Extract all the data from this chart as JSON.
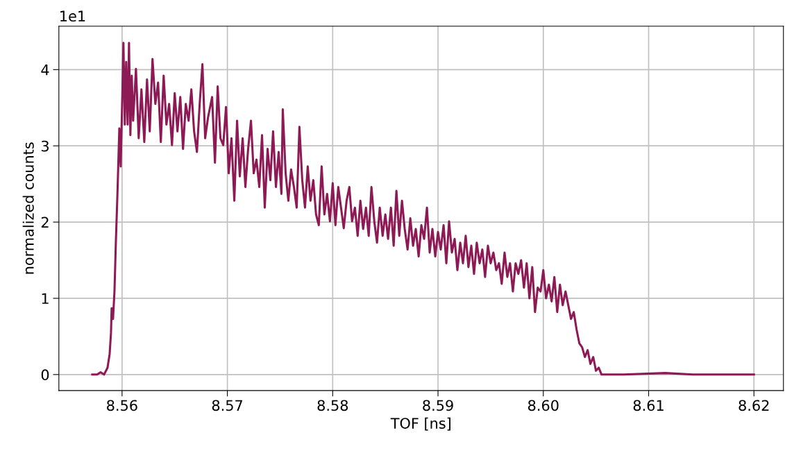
{
  "chart_data": {
    "type": "line",
    "xlabel": "TOF [ns]",
    "ylabel": "normalized counts",
    "annotations": [
      "1e1"
    ],
    "x": [
      8.55717,
      8.55763,
      8.55796,
      8.55829,
      8.55862,
      8.55882,
      8.55895,
      8.55901,
      8.55914,
      8.55928,
      8.55941,
      8.55954,
      8.55961,
      8.55974,
      8.55987,
      8.56,
      8.56013,
      8.56026,
      8.56039,
      8.56053,
      8.56066,
      8.56079,
      8.56092,
      8.56105,
      8.56132,
      8.56158,
      8.56184,
      8.56211,
      8.56237,
      8.56263,
      8.56289,
      8.56316,
      8.56342,
      8.56368,
      8.56395,
      8.56421,
      8.56447,
      8.56474,
      8.565,
      8.56526,
      8.56553,
      8.56579,
      8.56605,
      8.56632,
      8.56658,
      8.56684,
      8.56711,
      8.56737,
      8.56763,
      8.56789,
      8.56816,
      8.56855,
      8.56882,
      8.56908,
      8.56934,
      8.56961,
      8.56987,
      8.57013,
      8.57039,
      8.57066,
      8.57092,
      8.57118,
      8.57145,
      8.57171,
      8.57197,
      8.57224,
      8.5725,
      8.57276,
      8.57303,
      8.57329,
      8.57355,
      8.57382,
      8.57408,
      8.57434,
      8.57461,
      8.57487,
      8.57513,
      8.57526,
      8.57553,
      8.57579,
      8.57605,
      8.57632,
      8.57658,
      8.57684,
      8.57711,
      8.57737,
      8.57763,
      8.57789,
      8.57816,
      8.57842,
      8.57868,
      8.57895,
      8.57921,
      8.57947,
      8.57974,
      8.58,
      8.58026,
      8.58053,
      8.58079,
      8.58105,
      8.58132,
      8.58158,
      8.58184,
      8.58211,
      8.58237,
      8.58263,
      8.58289,
      8.58316,
      8.58342,
      8.58368,
      8.58395,
      8.58421,
      8.58447,
      8.58474,
      8.585,
      8.58526,
      8.58553,
      8.58579,
      8.58605,
      8.58632,
      8.58658,
      8.58684,
      8.58711,
      8.58737,
      8.58763,
      8.58789,
      8.58816,
      8.58842,
      8.58868,
      8.58895,
      8.58921,
      8.58947,
      8.58974,
      8.59,
      8.59026,
      8.59053,
      8.59079,
      8.59105,
      8.59132,
      8.59158,
      8.59184,
      8.59211,
      8.59237,
      8.59263,
      8.59289,
      8.59316,
      8.59342,
      8.59368,
      8.59395,
      8.59421,
      8.59447,
      8.59474,
      8.595,
      8.59526,
      8.59553,
      8.59579,
      8.59605,
      8.59632,
      8.59658,
      8.59684,
      8.59711,
      8.59737,
      8.59763,
      8.59789,
      8.59816,
      8.59842,
      8.59868,
      8.59895,
      8.59921,
      8.59947,
      8.59974,
      8.6,
      8.60026,
      8.60053,
      8.60079,
      8.60105,
      8.60132,
      8.60158,
      8.60184,
      8.60211,
      8.60237,
      8.60263,
      8.60289,
      8.60316,
      8.60342,
      8.60368,
      8.60395,
      8.60421,
      8.60447,
      8.60474,
      8.605,
      8.60526,
      8.60553,
      8.60599,
      8.60763,
      8.61158,
      8.61421,
      8.62
    ],
    "series": [
      {
        "color": "#8e1a55",
        "values": [
          0,
          0,
          0.03,
          0,
          0.09,
          0.27,
          0.55,
          0.87,
          0.73,
          1.09,
          1.73,
          2.28,
          2.6,
          3.23,
          2.73,
          3.51,
          4.35,
          3.28,
          4.1,
          3.28,
          4.35,
          3.14,
          3.92,
          3.33,
          4.01,
          3.1,
          3.74,
          3.05,
          3.87,
          3.19,
          4.14,
          3.55,
          3.83,
          3.05,
          3.92,
          3.28,
          3.55,
          3.01,
          3.69,
          3.19,
          3.64,
          2.96,
          3.55,
          3.33,
          3.74,
          3.19,
          2.92,
          3.55,
          4.07,
          3.1,
          3.37,
          3.64,
          2.78,
          3.78,
          3.1,
          3.01,
          3.51,
          2.64,
          3.1,
          2.28,
          3.33,
          2.6,
          3.1,
          2.46,
          2.96,
          3.33,
          2.64,
          2.82,
          2.46,
          3.14,
          2.19,
          2.96,
          2.55,
          3.19,
          2.46,
          2.92,
          2.37,
          3.48,
          2.64,
          2.28,
          2.69,
          2.46,
          2.19,
          3.25,
          2.55,
          2.19,
          2.73,
          2.28,
          2.55,
          2.1,
          1.96,
          2.73,
          2.1,
          2.37,
          2.01,
          2.51,
          1.96,
          2.46,
          2.19,
          1.92,
          2.28,
          2.46,
          2.01,
          2.19,
          1.82,
          2.28,
          1.91,
          2.19,
          1.82,
          2.46,
          2.01,
          1.73,
          2.19,
          1.82,
          2.1,
          1.78,
          2.19,
          1.69,
          2.41,
          1.82,
          2.28,
          1.91,
          1.64,
          2.05,
          1.69,
          1.91,
          1.55,
          1.96,
          1.78,
          2.19,
          1.6,
          1.91,
          1.55,
          1.87,
          1.64,
          1.96,
          1.46,
          2.01,
          1.6,
          1.78,
          1.37,
          1.73,
          1.46,
          1.82,
          1.41,
          1.69,
          1.32,
          1.73,
          1.46,
          1.64,
          1.28,
          1.69,
          1.46,
          1.6,
          1.37,
          1.46,
          1.19,
          1.6,
          1.28,
          1.46,
          1.09,
          1.46,
          1.32,
          1.5,
          1.14,
          1.46,
          1.0,
          1.41,
          0.82,
          1.14,
          1.09,
          1.37,
          1.0,
          1.18,
          0.96,
          1.28,
          0.82,
          1.18,
          0.91,
          1.09,
          0.91,
          0.73,
          0.82,
          0.59,
          0.41,
          0.36,
          0.23,
          0.32,
          0.14,
          0.23,
          0.05,
          0.09,
          0,
          0,
          0,
          0.02,
          0,
          0
        ]
      }
    ],
    "xlim": [
      8.554,
      8.6228
    ],
    "ylim": [
      -0.21,
      4.57
    ],
    "xticks": [
      8.56,
      8.57,
      8.58,
      8.59,
      {
        "value": 8.6,
        "label": "8.60"
      },
      8.61,
      8.62
    ],
    "yticks": [
      0,
      1,
      2,
      3,
      4
    ],
    "grid": true,
    "line_style": "solid",
    "marker": "none"
  }
}
